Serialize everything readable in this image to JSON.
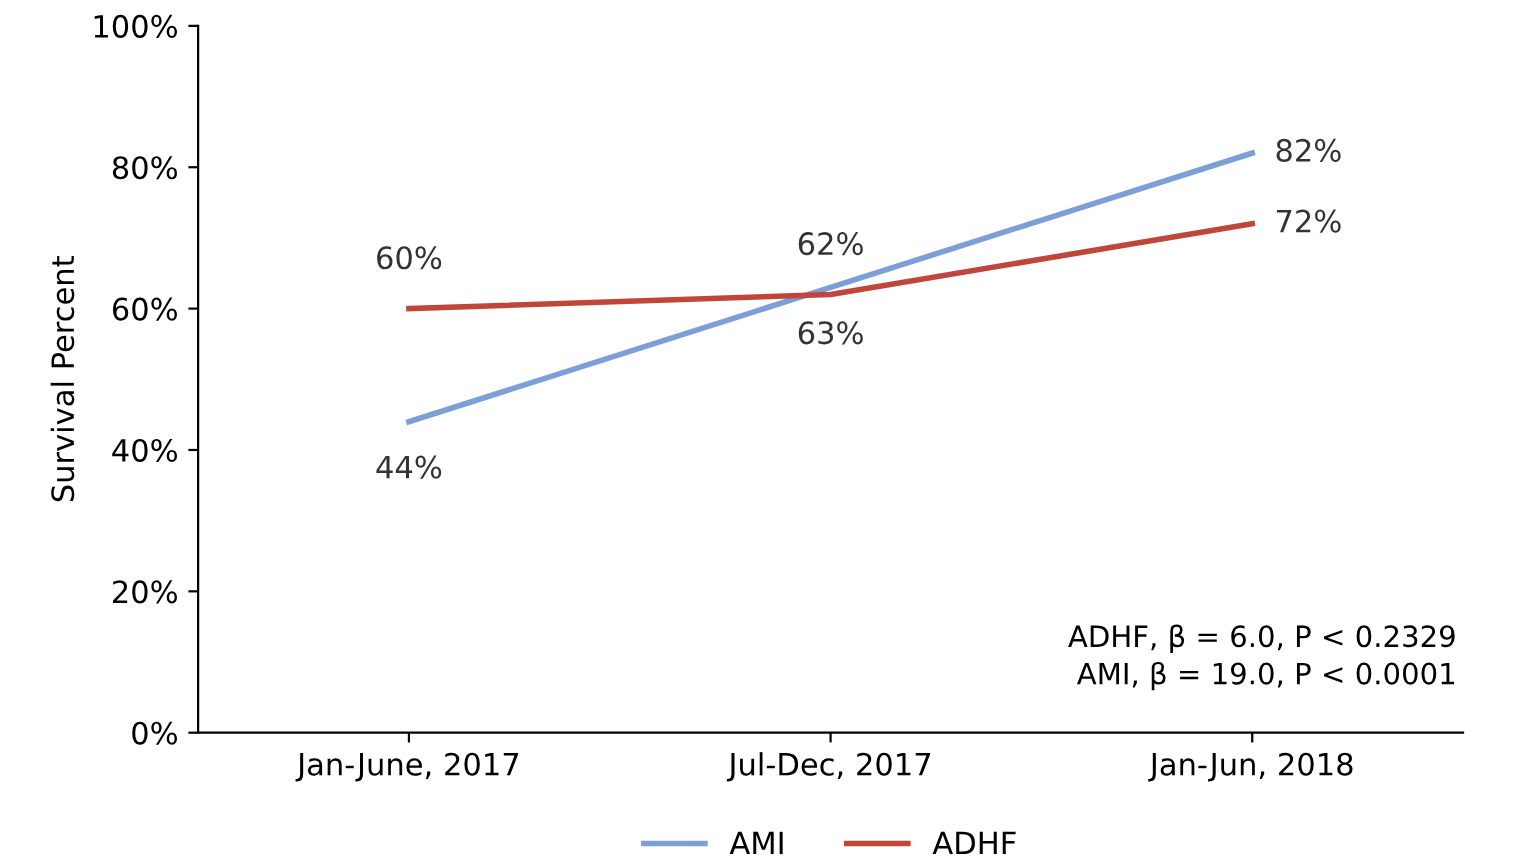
{
  "chart_data": {
    "type": "line",
    "ylabel": "Survival Percent",
    "categories": [
      "Jan-June, 2017",
      "Jul-Dec, 2017",
      "Jan-Jun, 2018"
    ],
    "series": [
      {
        "name": "AMI",
        "color": "#7b9fd6",
        "values": [
          44,
          63,
          82
        ],
        "value_labels": [
          "44%",
          "63%",
          "82%"
        ]
      },
      {
        "name": "ADHF",
        "color": "#c0453a",
        "values": [
          60,
          62,
          72
        ],
        "value_labels": [
          "60%",
          "62%",
          "72%"
        ]
      }
    ],
    "ylim": [
      0,
      100
    ],
    "yticks": [
      {
        "value": 0,
        "label": "0%"
      },
      {
        "value": 20,
        "label": "20%"
      },
      {
        "value": 40,
        "label": "40%"
      },
      {
        "value": 60,
        "label": "60%"
      },
      {
        "value": 80,
        "label": "80%"
      },
      {
        "value": 100,
        "label": "100%"
      }
    ],
    "grid": false,
    "legend": "bottom",
    "marker": "none",
    "line_style": "solid",
    "annotations": [
      "ADHF, β = 6.0, P < 0.2329",
      "AMI, β = 19.0, P < 0.0001"
    ]
  }
}
